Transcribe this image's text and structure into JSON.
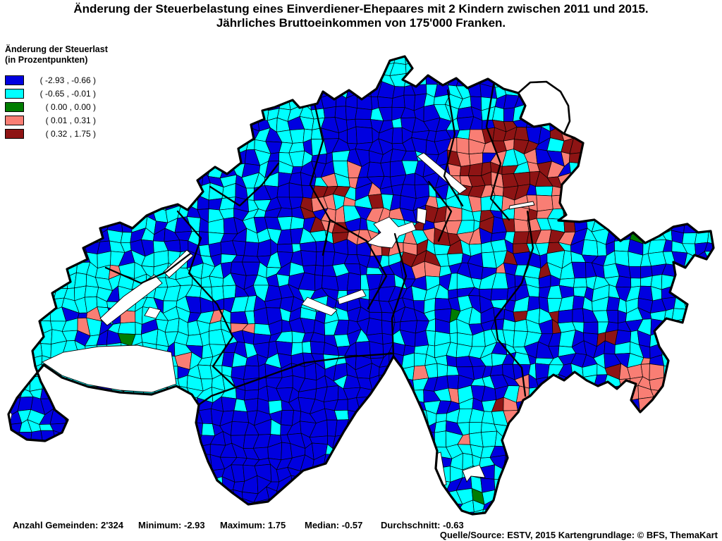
{
  "title": {
    "line1": "Änderung der Steuerbelastung eines Einverdiener-Ehepaares mit 2 Kindern zwischen 2011 und 2015.",
    "line2": "Jährliches Bruttoeinkommen von 175'000 Franken."
  },
  "legend": {
    "title_line1": "Änderung der Steuerlast",
    "title_line2": "(in Prozentpunkten)",
    "items": [
      {
        "label": "( -2.93 , -0.66 )",
        "range_min": -2.93,
        "range_max": -0.66,
        "color": "#0000E0"
      },
      {
        "label": "( -0.65 , -0.01 )",
        "range_min": -0.65,
        "range_max": -0.01,
        "color": "#00FFFF"
      },
      {
        "label": "( 0.00 , 0.00 )",
        "range_min": 0.0,
        "range_max": 0.0,
        "color": "#007D00"
      },
      {
        "label": "( 0.01 , 0.31 )",
        "range_min": 0.01,
        "range_max": 0.31,
        "color": "#F97E74"
      },
      {
        "label": "( 0.32 , 1.75 )",
        "range_min": 0.32,
        "range_max": 1.75,
        "color": "#8E1414"
      }
    ]
  },
  "stats": {
    "items": [
      "Anzahl Gemeinden: 2'324",
      "Minimum: -2.93",
      "Maximum: 1.75",
      "Median: -0.57",
      "Durchschnitt: -0.63"
    ]
  },
  "source": "Quelle/Source: ESTV, 2015 Kartengrundlage: © BFS, ThemaKart",
  "map": {
    "palette": {
      "blue": "#0000E0",
      "cyan": "#00FFFF",
      "green": "#007D00",
      "salmon": "#F97E74",
      "darkred": "#8E1414",
      "water": "#FFFFFF",
      "border": "#000000"
    }
  }
}
